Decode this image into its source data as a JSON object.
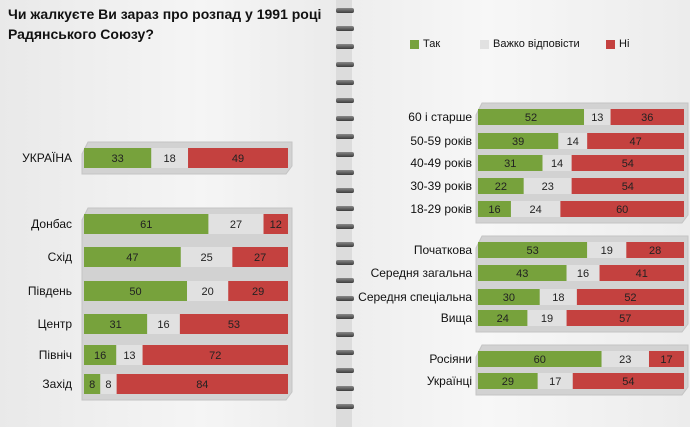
{
  "title": "Чи жалкуєте Ви зараз про розпад у 1991 році Радянського Союзу?",
  "legend": [
    {
      "label": "Так",
      "color": "#77a23c"
    },
    {
      "label": "Важко відповісти",
      "color": "#e1e1e1"
    },
    {
      "label": "Ні",
      "color": "#c4413f"
    }
  ],
  "chart_data": {
    "type": "bar",
    "stacked": true,
    "percent_scale": [
      0,
      100
    ],
    "series_names": [
      "Так",
      "Важко відповісти",
      "Ні"
    ],
    "series_colors": [
      "#77a23c",
      "#e1e1e1",
      "#c4413f"
    ],
    "panels": [
      {
        "groups": [
          {
            "rows": [
              {
                "label": "УКРАЇНА",
                "values": [
                  33,
                  18,
                  49
                ]
              }
            ]
          },
          {
            "rows": [
              {
                "label": "Донбас",
                "values": [
                  61,
                  27,
                  12
                ]
              },
              {
                "label": "Схід",
                "values": [
                  47,
                  25,
                  27
                ]
              },
              {
                "label": "Південь",
                "values": [
                  50,
                  20,
                  29
                ]
              },
              {
                "label": "Центр",
                "values": [
                  31,
                  16,
                  53
                ]
              },
              {
                "label": "Північ",
                "values": [
                  16,
                  13,
                  72
                ]
              },
              {
                "label": "Захід",
                "values": [
                  8,
                  8,
                  84
                ]
              }
            ]
          }
        ]
      },
      {
        "groups": [
          {
            "rows": [
              {
                "label": "60 і старше",
                "values": [
                  52,
                  13,
                  36
                ]
              },
              {
                "label": "50-59 років",
                "values": [
                  39,
                  14,
                  47
                ]
              },
              {
                "label": "40-49 років",
                "values": [
                  31,
                  14,
                  54
                ]
              },
              {
                "label": "30-39 років",
                "values": [
                  22,
                  23,
                  54
                ]
              },
              {
                "label": "18-29 років",
                "values": [
                  16,
                  24,
                  60
                ]
              }
            ]
          },
          {
            "rows": [
              {
                "label": "Початкова",
                "values": [
                  53,
                  19,
                  28
                ]
              },
              {
                "label": "Середня загальна",
                "values": [
                  43,
                  16,
                  41
                ]
              },
              {
                "label": "Середня спеціальна",
                "values": [
                  30,
                  18,
                  52
                ]
              },
              {
                "label": "Вища",
                "values": [
                  24,
                  19,
                  57
                ]
              }
            ]
          },
          {
            "rows": [
              {
                "label": "Росіяни",
                "values": [
                  60,
                  23,
                  17
                ]
              },
              {
                "label": "Українці",
                "values": [
                  29,
                  17,
                  54
                ]
              }
            ]
          }
        ]
      }
    ]
  }
}
